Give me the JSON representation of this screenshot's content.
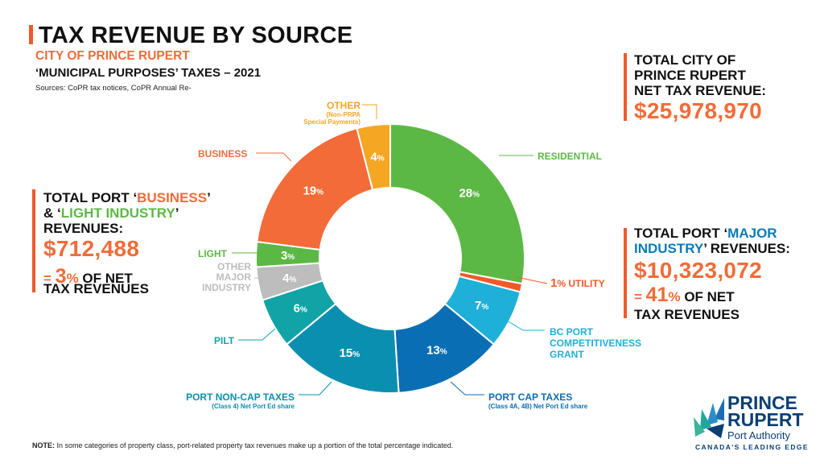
{
  "header": {
    "title": "TAX REVENUE BY SOURCE",
    "subtitle": "CITY OF PRINCE RUPERT",
    "subtitle2": "‘MUNICIPAL PURPOSES’ TAXES – 2021",
    "sources": "Sources: CoPR tax notices, CoPR Annual Re-"
  },
  "city_total": {
    "line1a": "TOTAL ",
    "line1b": "CITY OF",
    "line2": "PRINCE RUPERT",
    "line3": "NET TAX REVENUE:",
    "value": "$25,978,970"
  },
  "port_business": {
    "line1a": "TOTAL PORT ‘",
    "line1b": "BUSINESS",
    "line1c": "’",
    "line2a": "& ‘",
    "line2b": "LIGHT INDUSTRY",
    "line2c": "’",
    "line3": "REVENUES:",
    "value": "$712,488",
    "pct_prefix": "= ",
    "pct_num": "3",
    "pct_sign": "%",
    "pct_suffix": " OF NET",
    "line_last": "TAX REVENUES"
  },
  "port_major": {
    "line1a": "TOTAL PORT ‘",
    "line1b": "MAJOR",
    "line2a": "INDUSTRY",
    "line2b": "’ REVENUES:",
    "value": "$10,323,072",
    "pct_prefix": "= ",
    "pct_num": "41",
    "pct_sign": "%",
    "pct_suffix": " OF NET",
    "line_last": "TAX REVENUES"
  },
  "chart_data": {
    "type": "pie",
    "title": "TAX REVENUE BY SOURCE",
    "slices": [
      {
        "label": "RESIDENTIAL",
        "value": 28,
        "color": "#5cb844"
      },
      {
        "label": "UTILITY",
        "value": 1,
        "color": "#f05a28"
      },
      {
        "label": "BC PORT COMPETITIVENESS GRANT",
        "value": 7,
        "color": "#1eb0d8"
      },
      {
        "label": "PORT CAP TAXES",
        "sublabel": "(Class 4A, 4B) Net Port Ed share",
        "value": 13,
        "color": "#0a6eb4"
      },
      {
        "label": "PORT NON-CAP TAXES",
        "sublabel": "(Class 4) Net Port Ed share",
        "value": 15,
        "color": "#0b8fb0"
      },
      {
        "label": "PILT",
        "value": 6,
        "color": "#12a3a6"
      },
      {
        "label": "OTHER MAJOR INDUSTRY",
        "value": 4,
        "color": "#bdbdbd"
      },
      {
        "label": "LIGHT",
        "value": 3,
        "color": "#5cb844"
      },
      {
        "label": "BUSINESS",
        "value": 19,
        "color": "#f26b38"
      },
      {
        "label": "OTHER",
        "sublabel": "(Non-PRPA Special Payments)",
        "value": 4,
        "color": "#f5a623"
      }
    ],
    "pct_labels": [
      "28",
      "1",
      "7",
      "13",
      "15",
      "6",
      "4",
      "3",
      "19",
      "4"
    ],
    "pct_sign": "%"
  },
  "labels": {
    "other": "OTHER",
    "other_sub1": "(Non-PRPA",
    "other_sub2": "Special Payments)",
    "business": "BUSINESS",
    "residential": "RESIDENTIAL",
    "light": "LIGHT",
    "omi1": "OTHER",
    "omi2": "MAJOR",
    "omi3": "INDUSTRY",
    "utility_pct": "1",
    "utility_sign": "%",
    "utility": " UTILITY",
    "bc1": "BC PORT",
    "bc2": "COMPETITIVENESS",
    "bc3": "GRANT",
    "pilt": "PILT",
    "noncap": "PORT NON-CAP TAXES",
    "noncap_sub": "(Class 4) Net Port Ed share",
    "cap": "PORT CAP TAXES",
    "cap_sub": "(Class 4A, 4B) Net Port Ed share"
  },
  "footer": {
    "note_bold": "NOTE:",
    "note": " In some categories of property class, port-related property tax revenues make up a portion of the total percentage indicated."
  },
  "logo": {
    "line1": "PRINCE",
    "line2": "RUPERT",
    "line3": "Port Authority",
    "tagline": "CANADA'S LEADING EDGE"
  }
}
